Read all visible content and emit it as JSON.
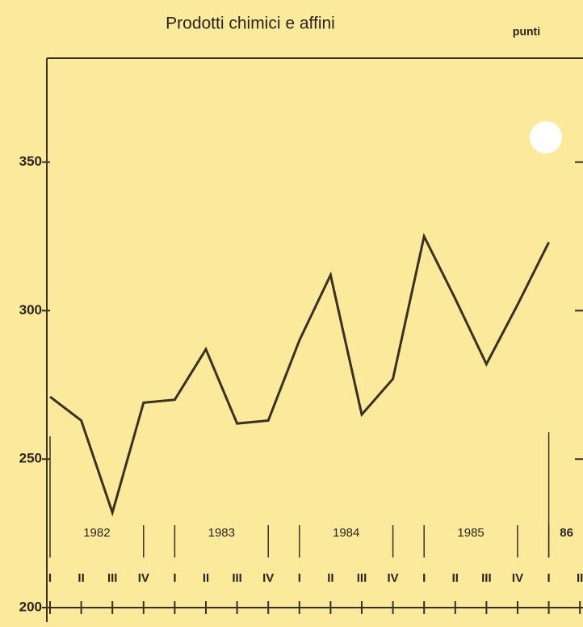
{
  "chart_data": {
    "type": "line",
    "title": "Prodotti chimici e affini",
    "unit_label": "punti",
    "categories": [
      "I",
      "II",
      "III",
      "IV",
      "I",
      "II",
      "III",
      "IV",
      "I",
      "II",
      "III",
      "IV",
      "I",
      "II",
      "III",
      "IV",
      "I",
      "II"
    ],
    "year_groups": [
      "1982",
      "1983",
      "1984",
      "1985",
      "86"
    ],
    "series": [
      {
        "color": "#3a3024",
        "values": [
          271,
          263,
          232,
          269,
          270,
          287,
          262,
          263,
          290,
          312,
          265,
          277,
          325,
          304,
          282,
          302,
          323,
          null
        ]
      }
    ],
    "ylim": [
      200,
      385
    ],
    "yticks": [
      200,
      250,
      300,
      350
    ]
  }
}
